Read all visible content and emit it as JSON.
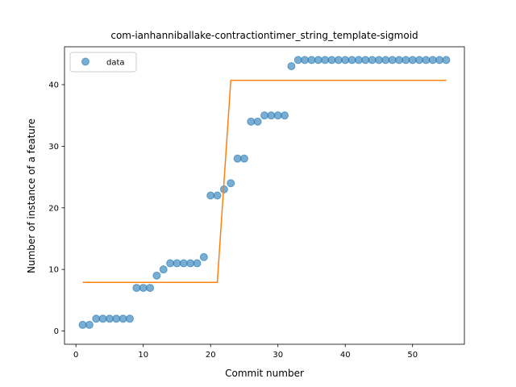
{
  "chart_data": {
    "type": "scatter",
    "title": "com-ianhanniballake-contractiontimer_string_template-sigmoid",
    "xlabel": "Commit number",
    "ylabel": "Number of instance of a feature",
    "xlim": [
      -1.7,
      57.7
    ],
    "ylim": [
      -2.15,
      46.15
    ],
    "xticks": [
      0,
      10,
      20,
      30,
      40,
      50
    ],
    "yticks": [
      0,
      10,
      20,
      30,
      40
    ],
    "grid": false,
    "legend_position": "top-left",
    "colors": {
      "data": "#1f77b4",
      "fit": "#ff7f0e"
    },
    "series": [
      {
        "name": "data",
        "kind": "scatter",
        "x": [
          1,
          2,
          3,
          4,
          5,
          6,
          7,
          8,
          9,
          10,
          11,
          12,
          13,
          14,
          15,
          16,
          17,
          18,
          19,
          20,
          21,
          22,
          23,
          24,
          25,
          26,
          27,
          28,
          29,
          30,
          31,
          32,
          33,
          34,
          35,
          36,
          37,
          38,
          39,
          40,
          41,
          42,
          43,
          44,
          45,
          46,
          47,
          48,
          49,
          50,
          51,
          52,
          53,
          54,
          55
        ],
        "y": [
          1,
          1,
          2,
          2,
          2,
          2,
          2,
          2,
          7,
          7,
          7,
          9,
          10,
          11,
          11,
          11,
          11,
          11,
          12,
          22,
          22,
          23,
          24,
          28,
          28,
          34,
          34,
          35,
          35,
          35,
          35,
          43,
          44,
          44,
          44,
          44,
          44,
          44,
          44,
          44,
          44,
          44,
          44,
          44,
          44,
          44,
          44,
          44,
          44,
          44,
          44,
          44,
          44,
          44,
          44
        ]
      },
      {
        "kind": "line",
        "x": [
          1,
          21,
          23,
          55
        ],
        "y": [
          7.9,
          7.9,
          40.7,
          40.7
        ]
      }
    ]
  }
}
